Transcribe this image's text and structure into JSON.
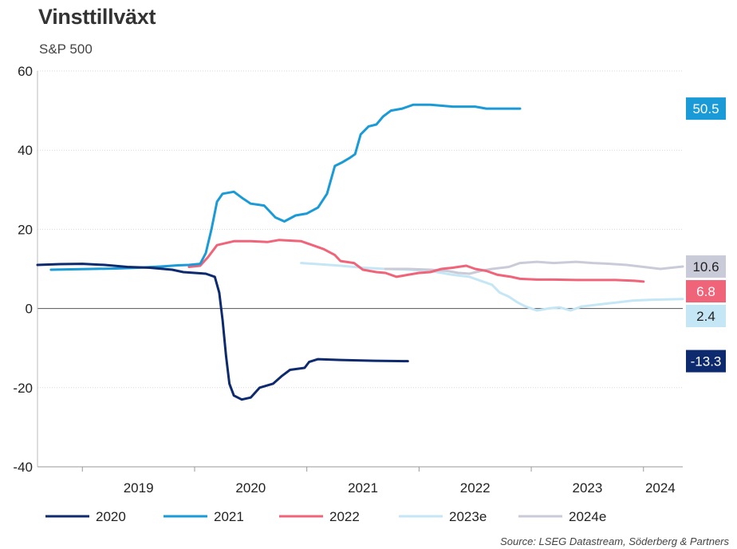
{
  "chart_data": {
    "type": "line",
    "title": "Vinsttillväxt",
    "subtitle": "S&P 500",
    "source": "Source: LSEG Datastream, Söderberg & Partners",
    "xlim": [
      2018.6,
      2024.35
    ],
    "ylim": [
      -40,
      60
    ],
    "yticks": [
      -40,
      -20,
      0,
      20,
      40,
      60
    ],
    "ytick_labels": [
      "-40",
      "-20",
      "0",
      "20",
      "40",
      "60"
    ],
    "xtick_labels": [
      {
        "label": "2019",
        "x": 2019.5
      },
      {
        "label": "2020",
        "x": 2020.5
      },
      {
        "label": "2021",
        "x": 2021.5
      },
      {
        "label": "2022",
        "x": 2022.5
      },
      {
        "label": "2023",
        "x": 2023.5
      },
      {
        "label": "2024",
        "x": 2024.15
      }
    ],
    "xtick_marks": [
      2019,
      2020,
      2021,
      2022,
      2023,
      2024
    ],
    "grid": true,
    "legend_position": "bottom",
    "series": [
      {
        "name": "2020",
        "color": "#0e2a6e",
        "end_label": "-13.3",
        "end_value": -13.3,
        "points": [
          [
            2018.6,
            11
          ],
          [
            2018.8,
            11.2
          ],
          [
            2019.0,
            11.3
          ],
          [
            2019.2,
            11
          ],
          [
            2019.4,
            10.5
          ],
          [
            2019.6,
            10.3
          ],
          [
            2019.8,
            9.8
          ],
          [
            2019.9,
            9.2
          ],
          [
            2020.0,
            9
          ],
          [
            2020.1,
            8.8
          ],
          [
            2020.18,
            8
          ],
          [
            2020.22,
            4
          ],
          [
            2020.25,
            -3
          ],
          [
            2020.28,
            -12
          ],
          [
            2020.31,
            -19
          ],
          [
            2020.35,
            -22
          ],
          [
            2020.42,
            -23
          ],
          [
            2020.5,
            -22.5
          ],
          [
            2020.58,
            -20
          ],
          [
            2020.7,
            -19
          ],
          [
            2020.78,
            -17
          ],
          [
            2020.85,
            -15.5
          ],
          [
            2020.98,
            -15
          ],
          [
            2021.02,
            -13.5
          ],
          [
            2021.1,
            -12.8
          ],
          [
            2021.3,
            -13
          ],
          [
            2021.6,
            -13.2
          ],
          [
            2021.9,
            -13.3
          ]
        ]
      },
      {
        "name": "2021",
        "color": "#1a9ad6",
        "end_label": "50.5",
        "end_value": 50.5,
        "points": [
          [
            2018.72,
            9.8
          ],
          [
            2018.9,
            9.9
          ],
          [
            2019.1,
            10
          ],
          [
            2019.3,
            10.1
          ],
          [
            2019.5,
            10.3
          ],
          [
            2019.7,
            10.6
          ],
          [
            2019.85,
            10.9
          ],
          [
            2019.95,
            11
          ],
          [
            2020.05,
            11.3
          ],
          [
            2020.1,
            14
          ],
          [
            2020.15,
            20
          ],
          [
            2020.2,
            27
          ],
          [
            2020.25,
            29
          ],
          [
            2020.35,
            29.5
          ],
          [
            2020.42,
            28
          ],
          [
            2020.5,
            26.5
          ],
          [
            2020.62,
            26
          ],
          [
            2020.72,
            23
          ],
          [
            2020.8,
            22
          ],
          [
            2020.9,
            23.5
          ],
          [
            2021.0,
            24
          ],
          [
            2021.1,
            25.5
          ],
          [
            2021.18,
            29
          ],
          [
            2021.25,
            36
          ],
          [
            2021.32,
            37
          ],
          [
            2021.38,
            38
          ],
          [
            2021.43,
            39
          ],
          [
            2021.48,
            44
          ],
          [
            2021.55,
            46
          ],
          [
            2021.62,
            46.5
          ],
          [
            2021.68,
            48.5
          ],
          [
            2021.75,
            50
          ],
          [
            2021.85,
            50.5
          ],
          [
            2021.95,
            51.5
          ],
          [
            2022.1,
            51.5
          ],
          [
            2022.3,
            51
          ],
          [
            2022.5,
            51
          ],
          [
            2022.6,
            50.5
          ],
          [
            2022.75,
            50.5
          ],
          [
            2022.9,
            50.5
          ]
        ]
      },
      {
        "name": "2022",
        "color": "#f0647a",
        "end_label": "6.8",
        "end_value": 6.8,
        "points": [
          [
            2019.95,
            10.5
          ],
          [
            2020.05,
            10.8
          ],
          [
            2020.12,
            13
          ],
          [
            2020.2,
            16
          ],
          [
            2020.35,
            17
          ],
          [
            2020.5,
            17
          ],
          [
            2020.65,
            16.8
          ],
          [
            2020.75,
            17.3
          ],
          [
            2020.95,
            17
          ],
          [
            2021.05,
            16
          ],
          [
            2021.15,
            15
          ],
          [
            2021.25,
            13.5
          ],
          [
            2021.3,
            12
          ],
          [
            2021.42,
            11.5
          ],
          [
            2021.5,
            9.8
          ],
          [
            2021.62,
            9.2
          ],
          [
            2021.7,
            9
          ],
          [
            2021.8,
            8
          ],
          [
            2021.9,
            8.5
          ],
          [
            2022.0,
            9
          ],
          [
            2022.1,
            9.2
          ],
          [
            2022.2,
            10
          ],
          [
            2022.3,
            10.3
          ],
          [
            2022.42,
            10.8
          ],
          [
            2022.5,
            10
          ],
          [
            2022.6,
            9.5
          ],
          [
            2022.7,
            8.5
          ],
          [
            2022.82,
            8
          ],
          [
            2022.9,
            7.5
          ],
          [
            2023.05,
            7.3
          ],
          [
            2023.2,
            7.3
          ],
          [
            2023.4,
            7.2
          ],
          [
            2023.6,
            7.2
          ],
          [
            2023.75,
            7.2
          ],
          [
            2023.92,
            7
          ],
          [
            2024.0,
            6.8
          ]
        ]
      },
      {
        "name": "2023e",
        "color": "#c5e6f5",
        "end_label": "2.4",
        "end_value": 2.4,
        "points": [
          [
            2020.95,
            11.5
          ],
          [
            2021.1,
            11.2
          ],
          [
            2021.3,
            10.8
          ],
          [
            2021.5,
            10.3
          ],
          [
            2021.7,
            10
          ],
          [
            2021.9,
            9.8
          ],
          [
            2022.1,
            9.5
          ],
          [
            2022.3,
            8.5
          ],
          [
            2022.45,
            8
          ],
          [
            2022.55,
            7
          ],
          [
            2022.65,
            6
          ],
          [
            2022.72,
            4
          ],
          [
            2022.8,
            3
          ],
          [
            2022.88,
            1.5
          ],
          [
            2022.95,
            0.5
          ],
          [
            2023.05,
            -0.5
          ],
          [
            2023.15,
            0
          ],
          [
            2023.25,
            0.3
          ],
          [
            2023.35,
            -0.5
          ],
          [
            2023.45,
            0.5
          ],
          [
            2023.6,
            1
          ],
          [
            2023.75,
            1.5
          ],
          [
            2023.9,
            2
          ],
          [
            2024.05,
            2.2
          ],
          [
            2024.2,
            2.3
          ],
          [
            2024.35,
            2.4
          ]
        ]
      },
      {
        "name": "2024e",
        "color": "#c9cbd8",
        "end_label": "10.6",
        "end_value": 10.6,
        "points": [
          [
            2021.7,
            10
          ],
          [
            2021.9,
            10
          ],
          [
            2022.1,
            9.8
          ],
          [
            2022.25,
            9.5
          ],
          [
            2022.35,
            9
          ],
          [
            2022.45,
            8.8
          ],
          [
            2022.55,
            9.5
          ],
          [
            2022.65,
            10
          ],
          [
            2022.8,
            10.5
          ],
          [
            2022.9,
            11.5
          ],
          [
            2023.05,
            11.8
          ],
          [
            2023.2,
            11.5
          ],
          [
            2023.4,
            11.8
          ],
          [
            2023.55,
            11.5
          ],
          [
            2023.7,
            11.3
          ],
          [
            2023.85,
            11
          ],
          [
            2024.0,
            10.5
          ],
          [
            2024.15,
            10
          ],
          [
            2024.25,
            10.3
          ],
          [
            2024.35,
            10.6
          ]
        ]
      }
    ]
  }
}
